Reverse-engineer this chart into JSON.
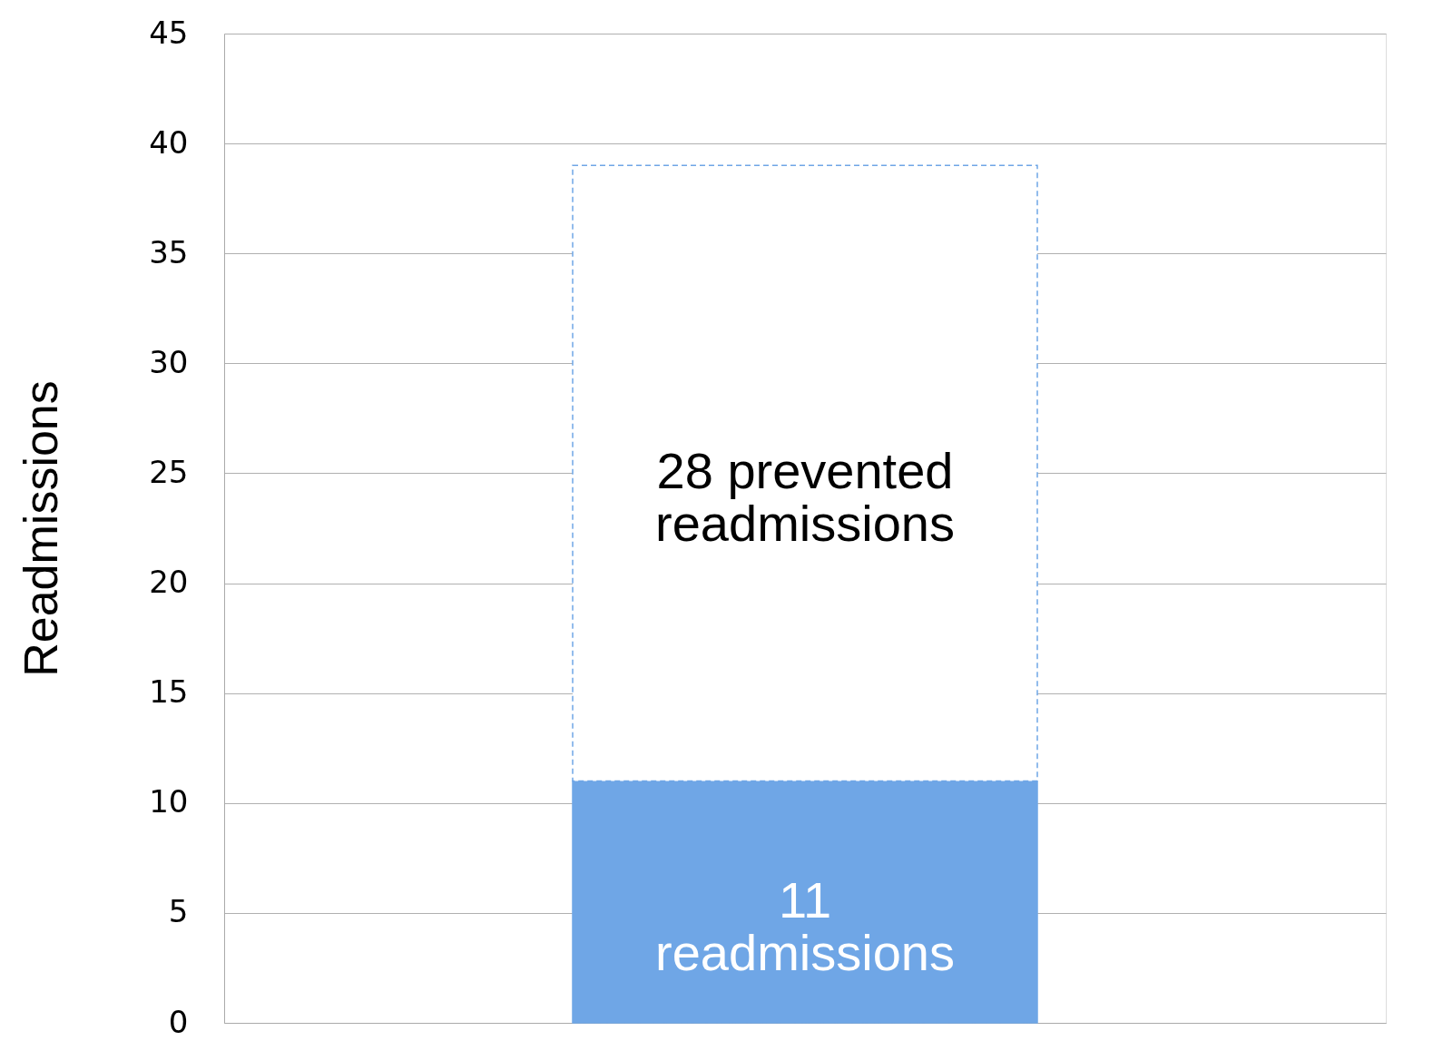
{
  "chart_data": {
    "type": "bar",
    "stacked": true,
    "ylabel": "Readmissions",
    "categories": [
      null
    ],
    "series": [
      {
        "color": "#6fa6e6",
        "values": [
          11
        ],
        "value_labels": [
          "11\nreadmissions"
        ]
      },
      {
        "color": "#ffffff",
        "values": [
          28
        ],
        "value_labels": [
          "28 prevented\nreadmissions"
        ],
        "line_style": "dashed"
      }
    ],
    "ylim": [
      0,
      45
    ],
    "yticks": [
      0,
      5,
      10,
      15,
      20,
      25,
      30,
      35,
      40,
      45
    ],
    "grid": "y"
  }
}
